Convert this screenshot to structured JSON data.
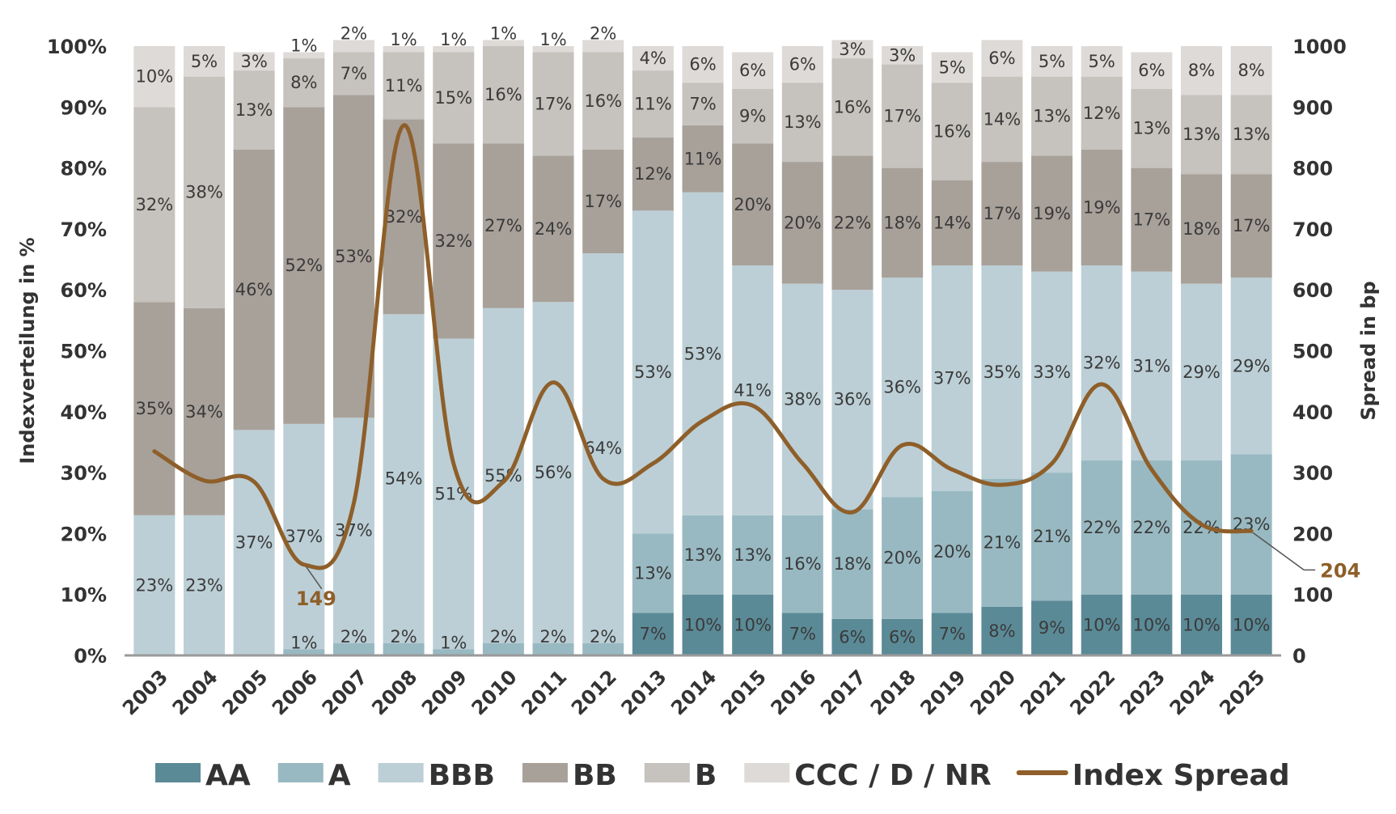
{
  "chart_data": {
    "type": "bar",
    "stacked": true,
    "title": "",
    "xlabel": "",
    "ylabel": "Indexverteilung in %",
    "y2label": "Spread in bp",
    "ylim": [
      0,
      100
    ],
    "y2lim": [
      0,
      1000
    ],
    "y_ticks": [
      "0%",
      "10%",
      "20%",
      "30%",
      "40%",
      "50%",
      "60%",
      "70%",
      "80%",
      "90%",
      "100%"
    ],
    "y2_ticks": [
      "0",
      "100",
      "200",
      "300",
      "400",
      "500",
      "600",
      "700",
      "800",
      "900",
      "1000"
    ],
    "categories": [
      "2003",
      "2004",
      "2005",
      "2006",
      "2007",
      "2008",
      "2009",
      "2010",
      "2011",
      "2012",
      "2013",
      "2014",
      "2015",
      "2016",
      "2017",
      "2018",
      "2019",
      "2020",
      "2021",
      "2022",
      "2023",
      "2024",
      "2025"
    ],
    "series": [
      {
        "name": "AA",
        "color": "#5b8a97",
        "values": [
          0,
          0,
          0,
          0,
          0,
          0,
          0,
          0,
          0,
          0,
          7,
          10,
          10,
          7,
          6,
          6,
          7,
          8,
          9,
          10,
          10,
          10,
          10
        ],
        "labels": [
          "",
          "",
          "",
          "",
          "",
          "",
          "",
          "",
          "",
          "",
          "7%",
          "10%",
          "10%",
          "7%",
          "6%",
          "6%",
          "7%",
          "8%",
          "9%",
          "10%",
          "10%",
          "10%",
          "10%"
        ]
      },
      {
        "name": "A",
        "color": "#98b9c2",
        "values": [
          0,
          0,
          0,
          1,
          2,
          2,
          1,
          2,
          2,
          2,
          13,
          13,
          13,
          16,
          18,
          20,
          20,
          21,
          21,
          22,
          22,
          22,
          23
        ],
        "labels": [
          "",
          "",
          "",
          "1%",
          "2%",
          "2%",
          "1%",
          "2%",
          "2%",
          "2%",
          "13%",
          "13%",
          "13%",
          "16%",
          "18%",
          "20%",
          "20%",
          "21%",
          "21%",
          "22%",
          "22%",
          "22%",
          "23%"
        ]
      },
      {
        "name": "BBB",
        "color": "#bccfd6",
        "values": [
          23,
          23,
          37,
          37,
          37,
          54,
          51,
          55,
          56,
          64,
          53,
          53,
          41,
          38,
          36,
          36,
          37,
          35,
          33,
          32,
          31,
          29,
          29
        ],
        "labels": [
          "23%",
          "23%",
          "37%",
          "37%",
          "37%",
          "54%",
          "51%",
          "55%",
          "56%",
          "64%",
          "53%",
          "53%",
          "41%",
          "38%",
          "36%",
          "36%",
          "37%",
          "35%",
          "33%",
          "32%",
          "31%",
          "29%",
          "29%"
        ]
      },
      {
        "name": "BB",
        "color": "#a8a19a",
        "values": [
          35,
          34,
          46,
          52,
          53,
          32,
          32,
          27,
          24,
          17,
          12,
          11,
          20,
          20,
          22,
          18,
          14,
          17,
          19,
          19,
          17,
          18,
          17
        ],
        "labels": [
          "35%",
          "34%",
          "46%",
          "52%",
          "53%",
          "32%",
          "32%",
          "27%",
          "24%",
          "17%",
          "12%",
          "11%",
          "20%",
          "20%",
          "22%",
          "18%",
          "14%",
          "17%",
          "19%",
          "19%",
          "17%",
          "18%",
          "17%"
        ]
      },
      {
        "name": "B",
        "color": "#c6c2bd",
        "values": [
          32,
          38,
          13,
          8,
          7,
          11,
          15,
          16,
          17,
          16,
          11,
          7,
          9,
          13,
          16,
          17,
          16,
          14,
          13,
          12,
          13,
          13,
          13
        ],
        "labels": [
          "32%",
          "38%",
          "13%",
          "8%",
          "7%",
          "11%",
          "15%",
          "16%",
          "17%",
          "16%",
          "11%",
          "7%",
          "9%",
          "13%",
          "16%",
          "17%",
          "16%",
          "14%",
          "13%",
          "12%",
          "13%",
          "13%",
          "13%"
        ]
      },
      {
        "name": "CCC / D / NR",
        "color": "#dddad7",
        "values": [
          10,
          5,
          3,
          1,
          2,
          1,
          1,
          1,
          1,
          2,
          4,
          6,
          6,
          6,
          3,
          3,
          5,
          6,
          5,
          5,
          6,
          8,
          8
        ],
        "labels": [
          "10%",
          "5%",
          "3%",
          "1%",
          "2%",
          "1%",
          "1%",
          "1%",
          "1%",
          "2%",
          "4%",
          "6%",
          "6%",
          "6%",
          "3%",
          "3%",
          "5%",
          "6%",
          "5%",
          "5%",
          "6%",
          "8%",
          "8%"
        ]
      }
    ],
    "line": {
      "name": "Index Spread",
      "color": "#8e5f2a",
      "axis": "right",
      "values": [
        335,
        287,
        285,
        149,
        250,
        870,
        315,
        285,
        448,
        290,
        315,
        385,
        410,
        315,
        235,
        345,
        305,
        280,
        315,
        445,
        305,
        215,
        204
      ]
    },
    "annotations": [
      {
        "category": "2006",
        "value": 149,
        "text": "149"
      },
      {
        "category": "2025",
        "value": 204,
        "text": "204"
      }
    ],
    "legend": {
      "position": "bottom"
    }
  }
}
